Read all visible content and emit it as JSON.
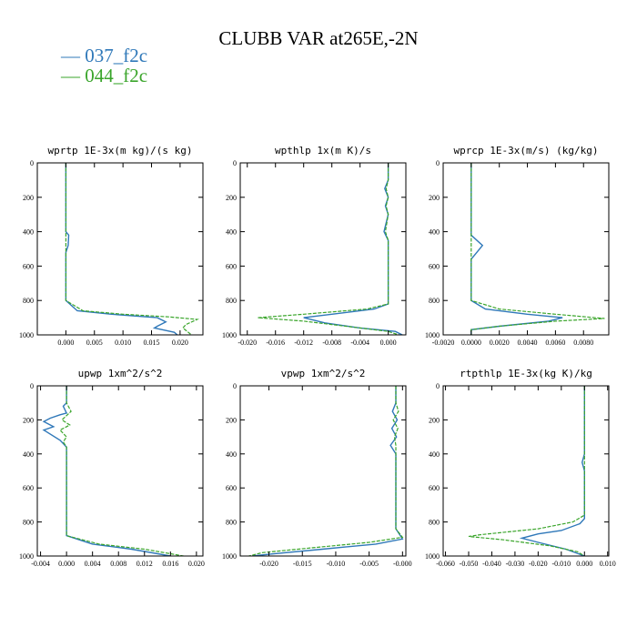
{
  "figure_title": "CLUBB VAR at265E,-2N",
  "legend": [
    {
      "label": "— 037_f2c",
      "color": "#2f78b9"
    },
    {
      "label": "— 044_f2c",
      "color": "#3aa52b"
    }
  ],
  "colors": {
    "series_a": "#2f78b9",
    "series_b": "#3aa52b",
    "axes": "#000000"
  },
  "chart_data": [
    {
      "type": "line",
      "title": "wprtp  1E-3x(m kg)/(s kg)",
      "xlim": [
        -0.005,
        0.024
      ],
      "ylim": [
        1000,
        0
      ],
      "grid": false,
      "x_ticks": [
        0,
        0.005,
        0.01,
        0.015,
        0.02
      ],
      "x_tick_labels": [
        "0.000",
        "0.005",
        "0.010",
        "0.015",
        "0.020"
      ],
      "y_ticks": [
        0,
        200,
        400,
        600,
        800,
        1000
      ],
      "y_tick_labels": [
        "0",
        "200",
        "400",
        "600",
        "800",
        "1000"
      ],
      "series": [
        {
          "name": "037_f2c",
          "x": [
            0.0,
            0.0,
            0.0,
            0.0005,
            0.0004,
            0.0,
            0.0,
            0.002,
            0.008,
            0.016,
            0.0175,
            0.016,
            0.0155,
            0.019,
            0.0195
          ],
          "y": [
            0,
            200,
            400,
            420,
            480,
            520,
            800,
            860,
            880,
            900,
            925,
            950,
            960,
            985,
            1000
          ]
        },
        {
          "name": "044_f2c",
          "x": [
            0.0,
            0.0,
            0.0,
            0.0,
            0.0,
            0.003,
            0.01,
            0.018,
            0.023,
            0.021,
            0.0205,
            0.022
          ],
          "y": [
            0,
            200,
            400,
            500,
            800,
            860,
            880,
            895,
            910,
            940,
            960,
            1000
          ]
        }
      ]
    },
    {
      "type": "line",
      "title": "wpthlp  1x(m K)/s",
      "xlim": [
        -0.021,
        0.0025
      ],
      "ylim": [
        1000,
        0
      ],
      "grid": false,
      "x_ticks": [
        -0.02,
        -0.016,
        -0.012,
        -0.008,
        -0.004,
        0.0
      ],
      "x_tick_labels": [
        "-0.020",
        "-0.016",
        "-0.012",
        "-0.008",
        "-0.004",
        "0.000"
      ],
      "y_ticks": [
        0,
        200,
        400,
        600,
        800,
        1000
      ],
      "y_tick_labels": [
        "0",
        "200",
        "400",
        "600",
        "800",
        "1000"
      ],
      "series": [
        {
          "name": "037_f2c",
          "x": [
            0.0,
            0.0,
            -0.0005,
            0.0,
            -0.0004,
            0.0,
            -0.0006,
            0.0,
            0.0,
            -0.002,
            -0.008,
            -0.012,
            -0.009,
            -0.004,
            0.001,
            0.002
          ],
          "y": [
            0,
            100,
            150,
            200,
            250,
            300,
            400,
            450,
            820,
            850,
            880,
            900,
            930,
            960,
            980,
            1000
          ]
        },
        {
          "name": "044_f2c",
          "x": [
            0.0,
            0.0,
            -0.0003,
            0.0,
            -0.0003,
            0.0,
            -0.0004,
            0.0,
            0.0,
            -0.003,
            -0.012,
            -0.0185,
            -0.012,
            -0.006,
            0.0,
            0.0015
          ],
          "y": [
            0,
            100,
            150,
            200,
            250,
            300,
            400,
            450,
            820,
            850,
            880,
            900,
            920,
            950,
            980,
            1000
          ]
        }
      ]
    },
    {
      "type": "line",
      "title": "wprcp  1E-3x(m/s) (kg/kg)",
      "xlim": [
        -0.002,
        0.0098
      ],
      "ylim": [
        1000,
        0
      ],
      "grid": false,
      "x_ticks": [
        -0.002,
        0.0,
        0.002,
        0.004,
        0.006,
        0.008
      ],
      "x_tick_labels": [
        "-0.0020",
        "0.0000",
        "0.0020",
        "0.0040",
        "0.0060",
        "0.0080"
      ],
      "y_ticks": [
        0,
        200,
        400,
        600,
        800,
        1000
      ],
      "y_tick_labels": [
        "0",
        "200",
        "400",
        "600",
        "800",
        "1000"
      ],
      "series": [
        {
          "name": "037_f2c",
          "x": [
            0.0,
            0.0,
            0.0,
            0.0008,
            0.0004,
            0.0,
            0.0,
            0.001,
            0.004,
            0.0065,
            0.0055,
            0.002,
            0.0,
            0.0
          ],
          "y": [
            0,
            200,
            420,
            480,
            520,
            560,
            800,
            850,
            880,
            900,
            920,
            950,
            970,
            1000
          ]
        },
        {
          "name": "044_f2c",
          "x": [
            0.0,
            0.0,
            0.0,
            0.0,
            0.0,
            0.002,
            0.006,
            0.0095,
            0.006,
            0.002,
            0.0,
            0.0
          ],
          "y": [
            0,
            200,
            420,
            500,
            800,
            850,
            880,
            905,
            920,
            950,
            970,
            1000
          ]
        }
      ]
    },
    {
      "type": "line",
      "title": "upwp  1xm^2/s^2",
      "xlim": [
        -0.0045,
        0.021
      ],
      "ylim": [
        1000,
        0
      ],
      "grid": false,
      "x_ticks": [
        -0.004,
        0.0,
        0.004,
        0.008,
        0.012,
        0.016,
        0.02
      ],
      "x_tick_labels": [
        "-0.004",
        "0.000",
        "0.004",
        "0.008",
        "0.012",
        "0.016",
        "0.020"
      ],
      "y_ticks": [
        0,
        200,
        400,
        600,
        800,
        1000
      ],
      "y_tick_labels": [
        "0",
        "200",
        "400",
        "600",
        "800",
        "1000"
      ],
      "series": [
        {
          "name": "037_f2c",
          "x": [
            0.0,
            0.0,
            -0.0005,
            0.0,
            -0.001,
            -0.0025,
            -0.0035,
            -0.002,
            -0.0035,
            -0.001,
            0.0,
            0.0,
            0.0,
            0.004,
            0.01,
            0.016
          ],
          "y": [
            0,
            100,
            120,
            160,
            170,
            190,
            210,
            240,
            260,
            320,
            360,
            400,
            880,
            930,
            960,
            1000
          ]
        },
        {
          "name": "044_f2c",
          "x": [
            0.0,
            0.0,
            0.0007,
            -0.0007,
            0.0005,
            -0.001,
            0.0,
            -0.0005,
            0.0,
            0.0,
            0.005,
            0.012,
            0.018
          ],
          "y": [
            0,
            100,
            150,
            200,
            230,
            260,
            300,
            330,
            360,
            880,
            930,
            960,
            1000
          ]
        }
      ]
    },
    {
      "type": "line",
      "title": "vpwp  1xm^2/s^2",
      "xlim": [
        -0.0243,
        0.0005
      ],
      "ylim": [
        1000,
        0
      ],
      "grid": false,
      "x_ticks": [
        -0.02,
        -0.015,
        -0.01,
        -0.005,
        0.0
      ],
      "x_tick_labels": [
        "-0.020",
        "-0.015",
        "-0.010",
        "-0.005",
        "-0.000"
      ],
      "y_ticks": [
        0,
        200,
        400,
        600,
        800,
        1000
      ],
      "y_tick_labels": [
        "0",
        "200",
        "400",
        "600",
        "800",
        "1000"
      ],
      "series": [
        {
          "name": "037_f2c",
          "x": [
            -0.001,
            -0.001,
            -0.0015,
            -0.0008,
            -0.0016,
            -0.0009,
            -0.0018,
            -0.001,
            -0.001,
            0.0,
            -0.004,
            -0.012,
            -0.02,
            -0.0225
          ],
          "y": [
            0,
            100,
            150,
            200,
            250,
            300,
            350,
            400,
            840,
            900,
            930,
            960,
            990,
            1000
          ]
        },
        {
          "name": "044_f2c",
          "x": [
            -0.001,
            -0.001,
            -0.0006,
            -0.0014,
            -0.0007,
            -0.0012,
            -0.001,
            -0.001,
            0.0,
            -0.005,
            -0.013,
            -0.021,
            -0.023
          ],
          "y": [
            0,
            100,
            150,
            200,
            250,
            300,
            350,
            840,
            890,
            920,
            950,
            980,
            1000
          ]
        }
      ]
    },
    {
      "type": "line",
      "title": "rtpthlp  1E-3x(kg K)/kg",
      "xlim": [
        -0.061,
        0.0105
      ],
      "ylim": [
        1000,
        0
      ],
      "grid": false,
      "x_ticks": [
        -0.06,
        -0.05,
        -0.04,
        -0.03,
        -0.02,
        -0.01,
        0.0,
        0.01
      ],
      "x_tick_labels": [
        "-0.060",
        "-0.050",
        "-0.040",
        "-0.030",
        "-0.020",
        "-0.010",
        "0.000",
        "0.010"
      ],
      "y_ticks": [
        0,
        200,
        400,
        600,
        800,
        1000
      ],
      "y_tick_labels": [
        "0",
        "200",
        "400",
        "600",
        "800",
        "1000"
      ],
      "series": [
        {
          "name": "037_f2c",
          "x": [
            0.0,
            0.0,
            -0.001,
            0.0,
            0.0,
            -0.002,
            -0.01,
            -0.02,
            -0.027,
            -0.02,
            -0.008,
            0.0
          ],
          "y": [
            0,
            400,
            450,
            500,
            780,
            810,
            850,
            870,
            895,
            920,
            960,
            1000
          ]
        },
        {
          "name": "044_f2c",
          "x": [
            0.0,
            0.0,
            0.0,
            0.0,
            -0.005,
            -0.02,
            -0.045,
            -0.05,
            -0.035,
            -0.015,
            -0.003,
            0.0
          ],
          "y": [
            0,
            400,
            500,
            760,
            800,
            840,
            875,
            885,
            905,
            940,
            975,
            1000
          ]
        }
      ]
    }
  ]
}
